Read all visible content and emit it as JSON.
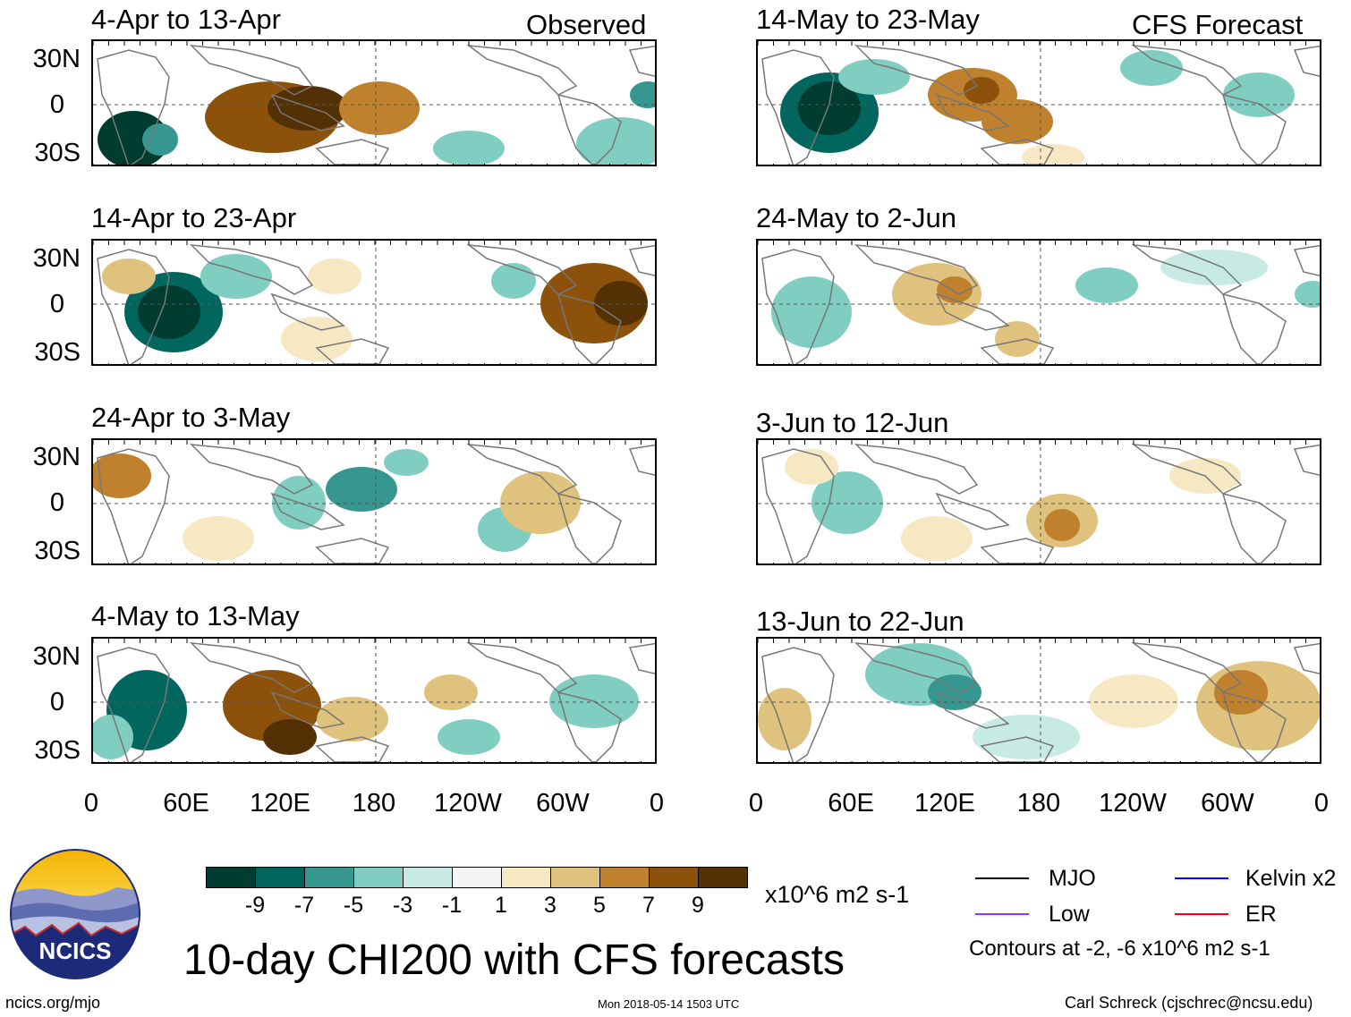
{
  "panels": [
    {
      "title": "4-Apr to 13-Apr",
      "tag": "Observed",
      "blobs": [
        [
          45,
          110,
          40,
          32,
          -9
        ],
        [
          40,
          105,
          25,
          20,
          -9
        ],
        [
          75,
          110,
          20,
          18,
          -5
        ],
        [
          200,
          85,
          75,
          40,
          7
        ],
        [
          240,
          75,
          45,
          25,
          9
        ],
        [
          320,
          75,
          45,
          30,
          5
        ],
        [
          420,
          120,
          40,
          20,
          -3
        ],
        [
          590,
          115,
          50,
          30,
          -3
        ],
        [
          620,
          60,
          20,
          15,
          -5
        ]
      ]
    },
    {
      "title": "14-Apr to 23-Apr",
      "tag": "",
      "blobs": [
        [
          90,
          80,
          55,
          45,
          -7
        ],
        [
          85,
          80,
          35,
          30,
          -9
        ],
        [
          160,
          40,
          40,
          25,
          -3
        ],
        [
          560,
          70,
          60,
          45,
          7
        ],
        [
          590,
          70,
          30,
          25,
          9
        ],
        [
          40,
          40,
          30,
          20,
          3
        ],
        [
          270,
          40,
          30,
          20,
          1
        ],
        [
          470,
          45,
          25,
          20,
          -3
        ],
        [
          250,
          110,
          40,
          25,
          1
        ]
      ]
    },
    {
      "title": "24-Apr to 3-May",
      "tag": "",
      "blobs": [
        [
          30,
          40,
          35,
          25,
          5
        ],
        [
          230,
          70,
          30,
          30,
          -3
        ],
        [
          300,
          55,
          40,
          25,
          -5
        ],
        [
          350,
          25,
          25,
          15,
          -3
        ],
        [
          460,
          100,
          30,
          25,
          -3
        ],
        [
          500,
          70,
          45,
          35,
          3
        ],
        [
          140,
          110,
          40,
          25,
          1
        ]
      ]
    },
    {
      "title": "4-May to 13-May",
      "tag": "",
      "blobs": [
        [
          60,
          80,
          45,
          45,
          -7
        ],
        [
          200,
          75,
          55,
          40,
          7
        ],
        [
          220,
          110,
          30,
          20,
          9
        ],
        [
          290,
          90,
          40,
          25,
          3
        ],
        [
          400,
          60,
          30,
          20,
          3
        ],
        [
          560,
          70,
          50,
          30,
          -3
        ],
        [
          20,
          110,
          25,
          25,
          -3
        ],
        [
          420,
          110,
          35,
          20,
          -3
        ]
      ]
    },
    {
      "title": "14-May to 23-May",
      "tag": "CFS Forecast",
      "blobs": [
        [
          80,
          80,
          55,
          45,
          -7
        ],
        [
          80,
          75,
          35,
          30,
          -9
        ],
        [
          240,
          60,
          50,
          30,
          5
        ],
        [
          250,
          55,
          20,
          15,
          7
        ],
        [
          290,
          90,
          40,
          25,
          5
        ],
        [
          130,
          40,
          40,
          20,
          -3
        ],
        [
          440,
          30,
          35,
          20,
          -3
        ],
        [
          560,
          60,
          40,
          25,
          -3
        ],
        [
          330,
          130,
          35,
          15,
          1
        ]
      ]
    },
    {
      "title": "24-May to 2-Jun",
      "tag": "",
      "blobs": [
        [
          60,
          80,
          45,
          40,
          -3
        ],
        [
          200,
          60,
          50,
          35,
          3
        ],
        [
          220,
          55,
          20,
          15,
          5
        ],
        [
          290,
          110,
          25,
          20,
          3
        ],
        [
          390,
          50,
          35,
          20,
          -3
        ],
        [
          510,
          30,
          60,
          20,
          -1
        ],
        [
          620,
          60,
          20,
          15,
          -3
        ]
      ]
    },
    {
      "title": "3-Jun to 12-Jun",
      "tag": "",
      "blobs": [
        [
          100,
          70,
          40,
          35,
          -3
        ],
        [
          340,
          90,
          40,
          30,
          3
        ],
        [
          340,
          95,
          20,
          18,
          5
        ],
        [
          200,
          110,
          40,
          25,
          1
        ],
        [
          500,
          40,
          40,
          20,
          1
        ],
        [
          60,
          30,
          30,
          20,
          1
        ]
      ]
    },
    {
      "title": "13-Jun to 22-Jun",
      "tag": "",
      "blobs": [
        [
          180,
          40,
          60,
          35,
          -3
        ],
        [
          220,
          60,
          30,
          20,
          -5
        ],
        [
          300,
          110,
          60,
          25,
          -1
        ],
        [
          560,
          75,
          70,
          50,
          3
        ],
        [
          540,
          60,
          30,
          25,
          5
        ],
        [
          30,
          90,
          30,
          35,
          3
        ],
        [
          420,
          70,
          50,
          30,
          1
        ]
      ]
    }
  ],
  "lat_labels": [
    "30N",
    "0",
    "30S"
  ],
  "lon_labels": [
    "0",
    "60E",
    "120E",
    "180",
    "120W",
    "60W",
    "0"
  ],
  "colorbar": {
    "colors": [
      "#003c30",
      "#01665e",
      "#35978f",
      "#80cdc1",
      "#c7eae5",
      "#f5f5f5",
      "#f6e8c3",
      "#dfc27d",
      "#bf812d",
      "#8c510a",
      "#543005"
    ],
    "labels": [
      "-9",
      "-7",
      "-5",
      "-3",
      "-1",
      "1",
      "3",
      "5",
      "7",
      "9"
    ],
    "units": "x10^6 m2 s-1"
  },
  "legend": [
    {
      "label": "MJO",
      "color": "#000000"
    },
    {
      "label": "Kelvin x2",
      "color": "#0000ff"
    },
    {
      "label": "Low",
      "color": "#9933ff"
    },
    {
      "label": "ER",
      "color": "#ff0000"
    }
  ],
  "contours_note": "Contours at -2, -6 x10^6 m2 s-1",
  "main_title": "10-day CHI200 with CFS forecasts",
  "logo_text": "NCICS",
  "footer": {
    "url": "ncics.org/mjo",
    "timestamp": "Mon 2018-05-14 1503 UTC",
    "author": "Carl Schreck (cjschrec@ncsu.edu)"
  }
}
